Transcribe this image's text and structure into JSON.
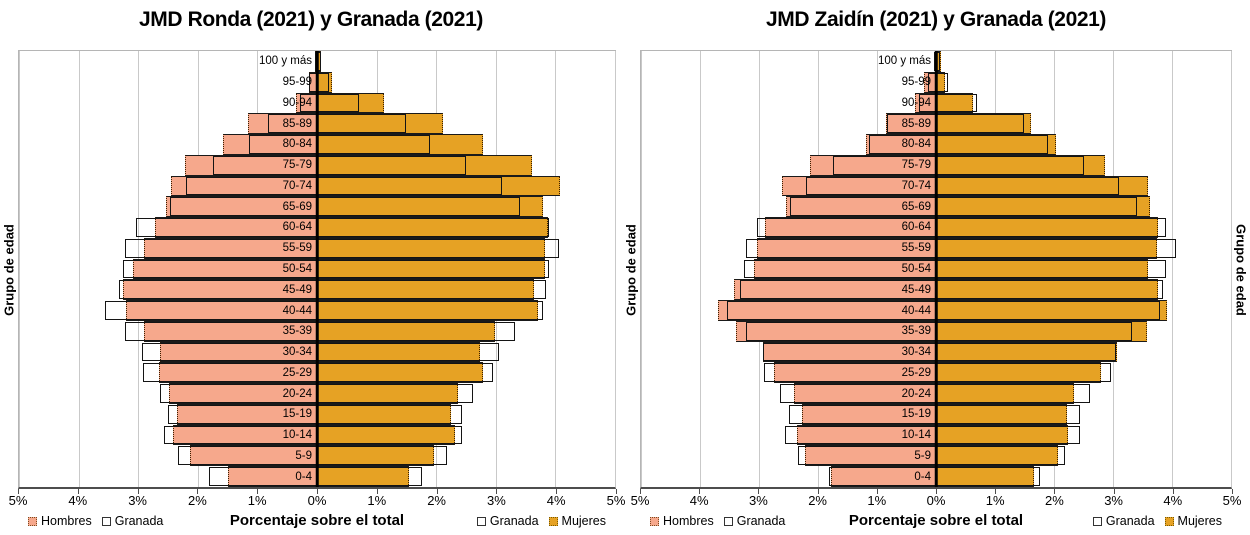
{
  "chart_data": [
    {
      "type": "bar",
      "subtype": "population-pyramid",
      "title": "JMD Ronda (2021) y Granada (2021)",
      "xlabel": "Porcentaje sobre el total",
      "ylabel_left": "Grupo de edad",
      "x_ticks": [
        "5%",
        "4%",
        "3%",
        "2%",
        "1%",
        "0%",
        "1%",
        "2%",
        "3%",
        "4%",
        "5%"
      ],
      "x_max_each_side_pct": 5,
      "grid": true,
      "legend_left": [
        "Hombres",
        "Granada"
      ],
      "legend_right": [
        "Granada",
        "Mujeres"
      ],
      "age_groups": [
        "0-4",
        "5-9",
        "10-14",
        "15-19",
        "20-24",
        "25-29",
        "30-34",
        "35-39",
        "40-44",
        "45-49",
        "50-54",
        "55-59",
        "60-64",
        "65-69",
        "70-74",
        "75-79",
        "80-84",
        "85-89",
        "90-94",
        "95-99",
        "100 y más"
      ],
      "series": [
        {
          "name": "Hombres",
          "side": "left",
          "role": "jmd",
          "color": "#F6A88C",
          "values": [
            1.5,
            2.13,
            2.41,
            2.35,
            2.49,
            2.65,
            2.63,
            2.9,
            3.2,
            3.26,
            3.08,
            2.9,
            2.72,
            2.53,
            2.45,
            2.21,
            1.57,
            1.16,
            0.36,
            0.14,
            0.03
          ]
        },
        {
          "name": "Granada",
          "side": "left",
          "role": "reference",
          "color": "none",
          "values": [
            1.82,
            2.34,
            2.56,
            2.5,
            2.64,
            2.92,
            2.93,
            3.22,
            3.55,
            3.33,
            3.25,
            3.22,
            3.03,
            2.47,
            2.2,
            1.74,
            1.14,
            0.83,
            0.28,
            0.13,
            0.04
          ]
        },
        {
          "name": "Mujeres",
          "side": "right",
          "role": "jmd",
          "color": "#E6A224",
          "values": [
            1.55,
            1.97,
            2.32,
            2.25,
            2.36,
            2.79,
            2.74,
            2.98,
            3.71,
            3.64,
            3.82,
            3.83,
            3.88,
            3.8,
            4.08,
            3.6,
            2.78,
            2.11,
            1.12,
            0.25,
            0.06
          ]
        },
        {
          "name": "Granada",
          "side": "right",
          "role": "reference",
          "color": "none",
          "values": [
            1.77,
            2.18,
            2.44,
            2.44,
            2.61,
            2.96,
            3.05,
            3.33,
            3.79,
            3.84,
            3.89,
            4.06,
            3.9,
            3.41,
            3.1,
            2.5,
            1.9,
            1.49,
            0.7,
            0.2,
            0.07
          ]
        }
      ]
    },
    {
      "type": "bar",
      "subtype": "population-pyramid",
      "title": "JMD Zaidín (2021) y Granada (2021)",
      "xlabel": "Porcentaje sobre el total",
      "ylabel_left": "Grupo de edad",
      "ylabel_right": "Grupo de edad",
      "x_ticks": [
        "5%",
        "4%",
        "3%",
        "2%",
        "1%",
        "0%",
        "1%",
        "2%",
        "3%",
        "4%",
        "5%"
      ],
      "x_max_each_side_pct": 5,
      "grid": true,
      "legend_left": [
        "Hombres",
        "Granada"
      ],
      "legend_right": [
        "Granada",
        "Mujeres"
      ],
      "age_groups": [
        "0-4",
        "5-9",
        "10-14",
        "15-19",
        "20-24",
        "25-29",
        "30-34",
        "35-39",
        "40-44",
        "45-49",
        "50-54",
        "55-59",
        "60-64",
        "65-69",
        "70-74",
        "75-79",
        "80-84",
        "85-89",
        "90-94",
        "95-99",
        "100 y más"
      ],
      "series": [
        {
          "name": "Hombres",
          "side": "left",
          "role": "jmd",
          "color": "#F6A88C",
          "values": [
            1.78,
            2.22,
            2.35,
            2.27,
            2.41,
            2.75,
            2.93,
            3.39,
            3.69,
            3.42,
            3.09,
            3.04,
            2.9,
            2.54,
            2.61,
            2.14,
            1.18,
            0.85,
            0.36,
            0.2,
            0.02
          ]
        },
        {
          "name": "Granada",
          "side": "left",
          "role": "reference",
          "color": "none",
          "values": [
            1.82,
            2.34,
            2.56,
            2.5,
            2.64,
            2.92,
            2.93,
            3.22,
            3.55,
            3.33,
            3.25,
            3.22,
            3.03,
            2.47,
            2.2,
            1.74,
            1.14,
            0.83,
            0.28,
            0.13,
            0.04
          ]
        },
        {
          "name": "Mujeres",
          "side": "right",
          "role": "jmd",
          "color": "#E6A224",
          "values": [
            1.66,
            2.06,
            2.24,
            2.22,
            2.34,
            2.79,
            3.07,
            3.57,
            3.91,
            3.76,
            3.6,
            3.74,
            3.77,
            3.63,
            3.6,
            2.87,
            2.03,
            1.61,
            0.62,
            0.15,
            0.08
          ]
        },
        {
          "name": "Granada",
          "side": "right",
          "role": "reference",
          "color": "none",
          "values": [
            1.77,
            2.18,
            2.44,
            2.44,
            2.61,
            2.96,
            3.05,
            3.33,
            3.79,
            3.84,
            3.89,
            4.06,
            3.9,
            3.41,
            3.1,
            2.5,
            1.9,
            1.49,
            0.7,
            0.2,
            0.07
          ]
        }
      ]
    }
  ],
  "style": {
    "hombres_fill": "#F6A88C",
    "mujeres_fill": "#E6A224",
    "reference_border": "#141414",
    "gridline_color": "#c9c9c9",
    "axis_color": "#4d4d4d"
  }
}
